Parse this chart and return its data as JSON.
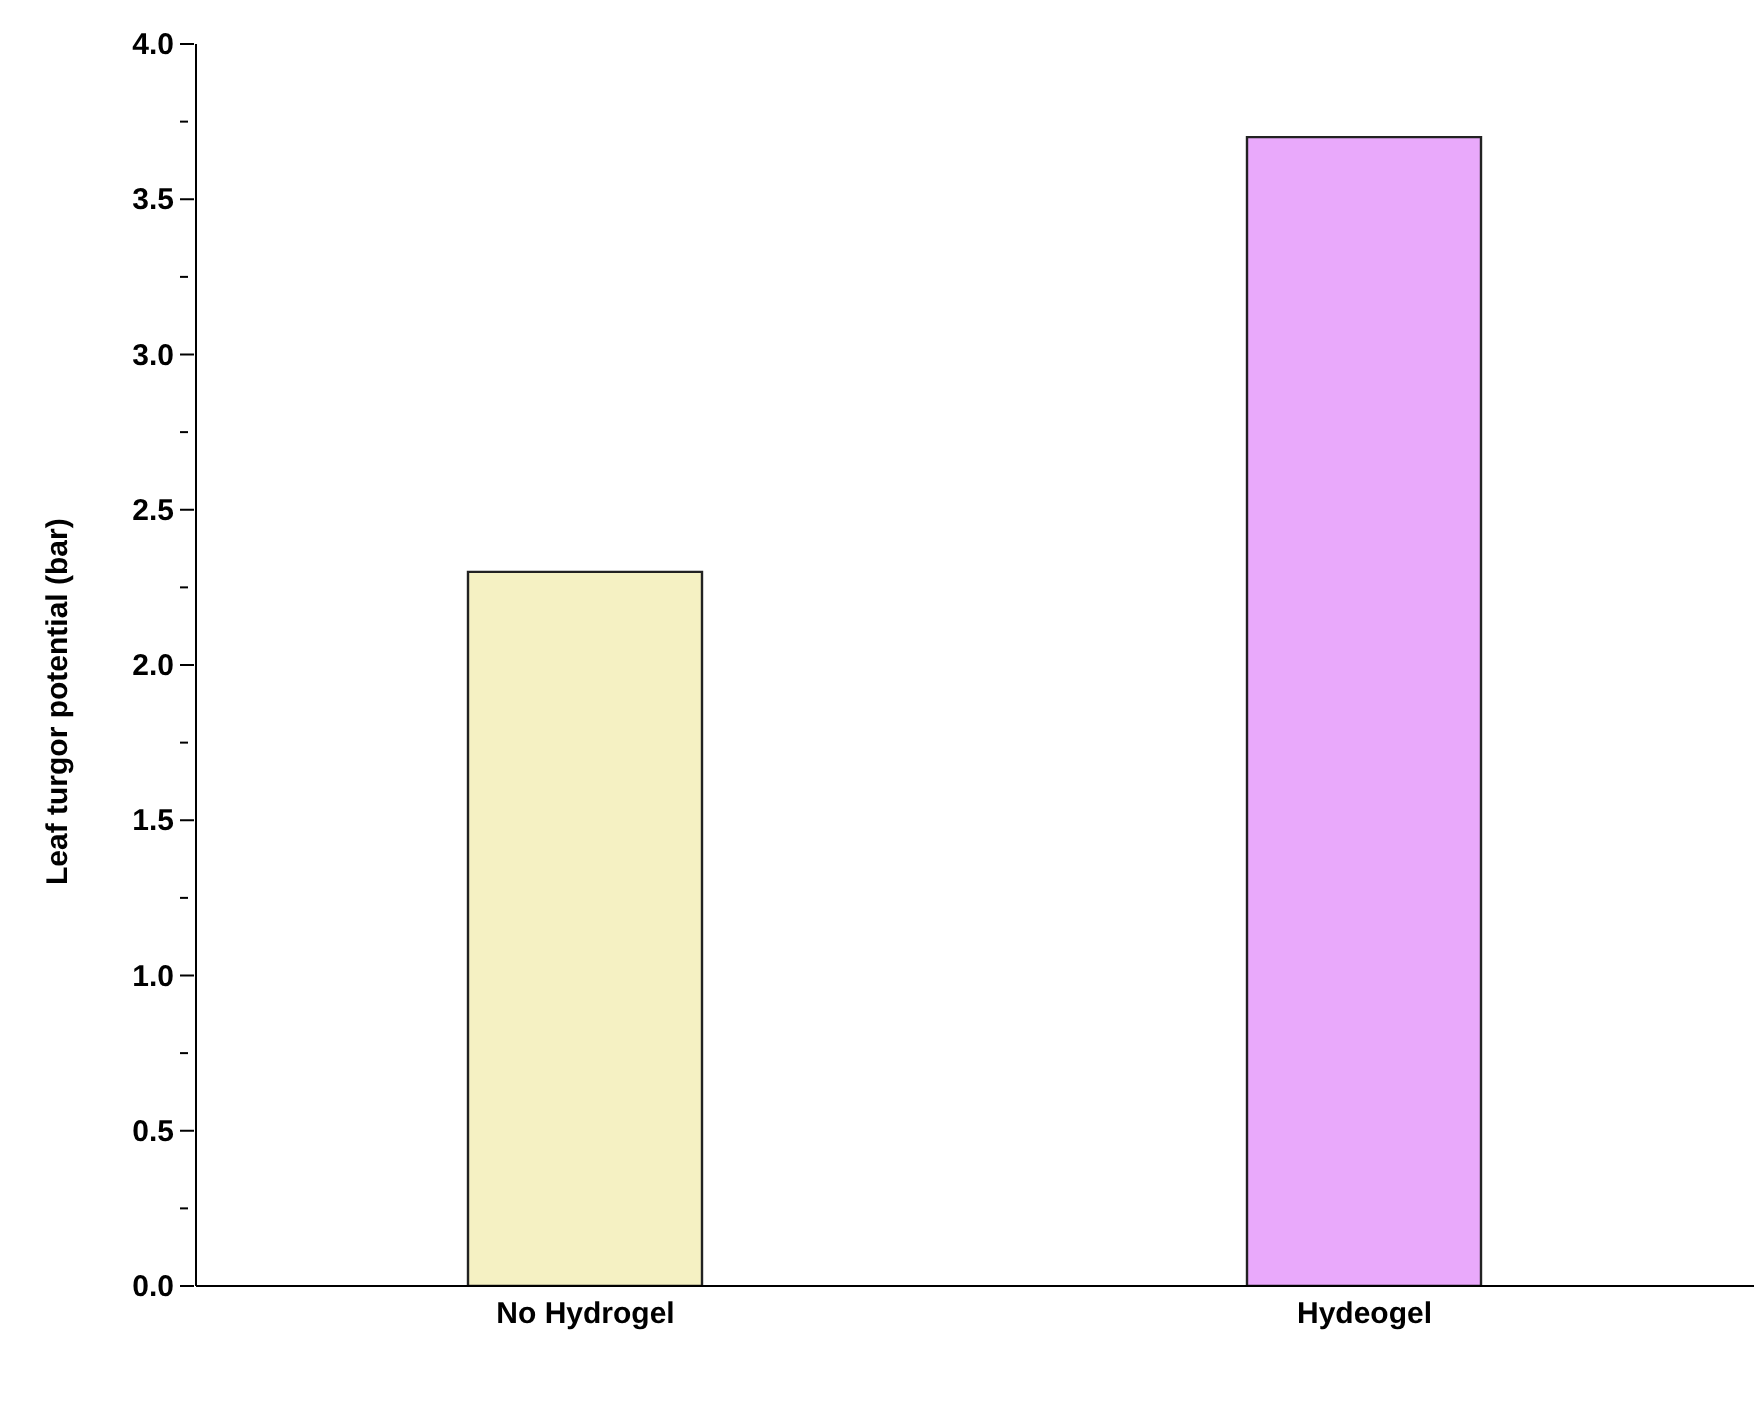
{
  "chart_data": {
    "type": "bar",
    "ylabel": "Leaf turgor potential (bar)",
    "categories": [
      "No Hydrogel",
      "Hydeogel"
    ],
    "values": [
      2.3,
      3.7
    ],
    "colors": [
      "#f5f1c3",
      "#e9a9fb"
    ],
    "ylim": [
      0,
      4
    ],
    "yticks": [
      {
        "value": 0,
        "label": "0.0"
      },
      {
        "value": 0.25,
        "label": null
      },
      {
        "value": 0.5,
        "label": "0.5"
      },
      {
        "value": 0.75,
        "label": null
      },
      {
        "value": 1,
        "label": "1.0"
      },
      {
        "value": 1.25,
        "label": null
      },
      {
        "value": 1.5,
        "label": "1.5"
      },
      {
        "value": 1.75,
        "label": null
      },
      {
        "value": 2,
        "label": "2.0"
      },
      {
        "value": 2.25,
        "label": null
      },
      {
        "value": 2.5,
        "label": "2.5"
      },
      {
        "value": 2.75,
        "label": null
      },
      {
        "value": 3,
        "label": "3.0"
      },
      {
        "value": 3.25,
        "label": null
      },
      {
        "value": 3.5,
        "label": "3.5"
      },
      {
        "value": 3.75,
        "label": null
      },
      {
        "value": 4,
        "label": "4.0"
      }
    ],
    "grid": false,
    "legend": false
  }
}
